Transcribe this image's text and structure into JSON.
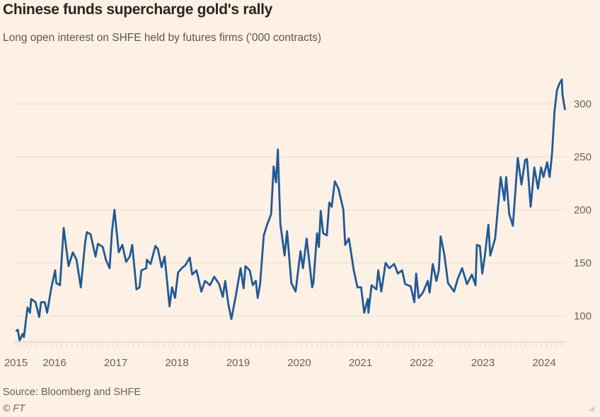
{
  "title": "Chinese funds supercharge gold's rally",
  "subtitle": "Long open interest on SHFE held by futures firms ('000 contracts)",
  "source": "Source: Bloomberg and SHFE",
  "copyright": "© FT",
  "colors": {
    "background": "#fdf0e4",
    "line": "#1f5a96",
    "grid": "#efe2d5"
  },
  "chart_data": {
    "type": "line",
    "title": "Chinese funds supercharge gold's rally",
    "subtitle": "Long open interest on SHFE held by futures firms ('000 contracts)",
    "xlabel": "",
    "ylabel": "",
    "x_tick_labels": [
      "2015",
      "2016",
      "2017",
      "2018",
      "2019",
      "2020",
      "2021",
      "2022",
      "2023",
      "2024"
    ],
    "x_tick_values": [
      2015.37,
      2016,
      2017,
      2018,
      2019,
      2020,
      2021,
      2022,
      2023,
      2024
    ],
    "y_ticks": [
      100,
      150,
      200,
      250,
      300
    ],
    "y_axis_side": "right",
    "ylim": [
      76,
      330
    ],
    "xlim": [
      2015.37,
      2024.34
    ],
    "grid": true,
    "series": [
      {
        "x": [
          2015.38,
          2015.4,
          2015.43,
          2015.48,
          2015.5,
          2015.56,
          2015.6,
          2015.62,
          2015.69,
          2015.75,
          2015.78,
          2015.84,
          2015.88,
          2015.95,
          2016.01,
          2016.03,
          2016.09,
          2016.15,
          2016.23,
          2016.3,
          2016.36,
          2016.43,
          2016.5,
          2016.53,
          2016.59,
          2016.67,
          2016.71,
          2016.79,
          2016.84,
          2016.9,
          2016.94,
          2016.98,
          2017.05,
          2017.11,
          2017.17,
          2017.23,
          2017.27,
          2017.34,
          2017.39,
          2017.42,
          2017.5,
          2017.51,
          2017.57,
          2017.65,
          2017.69,
          2017.75,
          2017.8,
          2017.88,
          2017.92,
          2017.97,
          2018.02,
          2018.08,
          2018.14,
          2018.21,
          2018.25,
          2018.32,
          2018.4,
          2018.46,
          2018.54,
          2018.61,
          2018.69,
          2018.75,
          2018.79,
          2018.84,
          2018.89,
          2018.96,
          2019.04,
          2019.09,
          2019.12,
          2019.19,
          2019.24,
          2019.29,
          2019.32,
          2019.36,
          2019.42,
          2019.48,
          2019.54,
          2019.58,
          2019.62,
          2019.65,
          2019.69,
          2019.76,
          2019.8,
          2019.87,
          2019.94,
          2020.02,
          2020.06,
          2020.12,
          2020.21,
          2020.23,
          2020.29,
          2020.32,
          2020.35,
          2020.39,
          2020.45,
          2020.49,
          2020.53,
          2020.58,
          2020.64,
          2020.72,
          2020.75,
          2020.81,
          2020.89,
          2020.95,
          2021.01,
          2021.06,
          2021.12,
          2021.13,
          2021.18,
          2021.26,
          2021.29,
          2021.34,
          2021.41,
          2021.47,
          2021.55,
          2021.61,
          2021.68,
          2021.73,
          2021.82,
          2021.88,
          2021.91,
          2021.95,
          2022.02,
          2022.1,
          2022.13,
          2022.18,
          2022.24,
          2022.28,
          2022.31,
          2022.37,
          2022.43,
          2022.53,
          2022.59,
          2022.66,
          2022.74,
          2022.82,
          2022.88,
          2022.9,
          2022.95,
          2022.99,
          2023.03,
          2023.09,
          2023.12,
          2023.2,
          2023.24,
          2023.29,
          2023.35,
          2023.38,
          2023.43,
          2023.49,
          2023.57,
          2023.63,
          2023.69,
          2023.72,
          2023.78,
          2023.84,
          2023.9,
          2023.95,
          2023.99,
          2024.05,
          2024.09,
          2024.13,
          2024.17,
          2024.21,
          2024.25,
          2024.29,
          2024.3,
          2024.34
        ],
        "y": [
          86,
          87,
          77,
          83,
          80,
          108,
          103,
          116,
          113,
          99,
          113,
          113,
          103,
          127,
          143,
          131,
          129,
          183,
          147,
          160,
          153,
          127,
          169,
          179,
          177,
          156,
          168,
          165,
          153,
          145,
          180,
          200,
          160,
          167,
          151,
          156,
          167,
          125,
          127,
          143,
          145,
          153,
          149,
          166,
          163,
          146,
          156,
          109,
          127,
          117,
          141,
          145,
          148,
          155,
          139,
          143,
          123,
          133,
          129,
          137,
          130,
          118,
          133,
          111,
          97,
          118,
          145,
          126,
          147,
          143,
          129,
          133,
          117,
          130,
          176,
          187,
          196,
          241,
          226,
          257,
          187,
          157,
          180,
          131,
          123,
          161,
          145,
          173,
          127,
          131,
          178,
          165,
          199,
          178,
          176,
          207,
          203,
          227,
          220,
          200,
          167,
          173,
          143,
          127,
          127,
          103,
          116,
          103,
          129,
          125,
          143,
          123,
          150,
          145,
          149,
          140,
          143,
          130,
          128,
          113,
          140,
          117,
          122,
          133,
          122,
          149,
          133,
          143,
          175,
          158,
          131,
          123,
          135,
          145,
          130,
          139,
          129,
          167,
          166,
          140,
          156,
          186,
          157,
          173,
          199,
          231,
          209,
          231,
          196,
          185,
          249,
          224,
          247,
          248,
          203,
          240,
          220,
          240,
          231,
          245,
          231,
          253,
          293,
          313,
          319,
          323,
          309,
          295
        ]
      }
    ]
  }
}
